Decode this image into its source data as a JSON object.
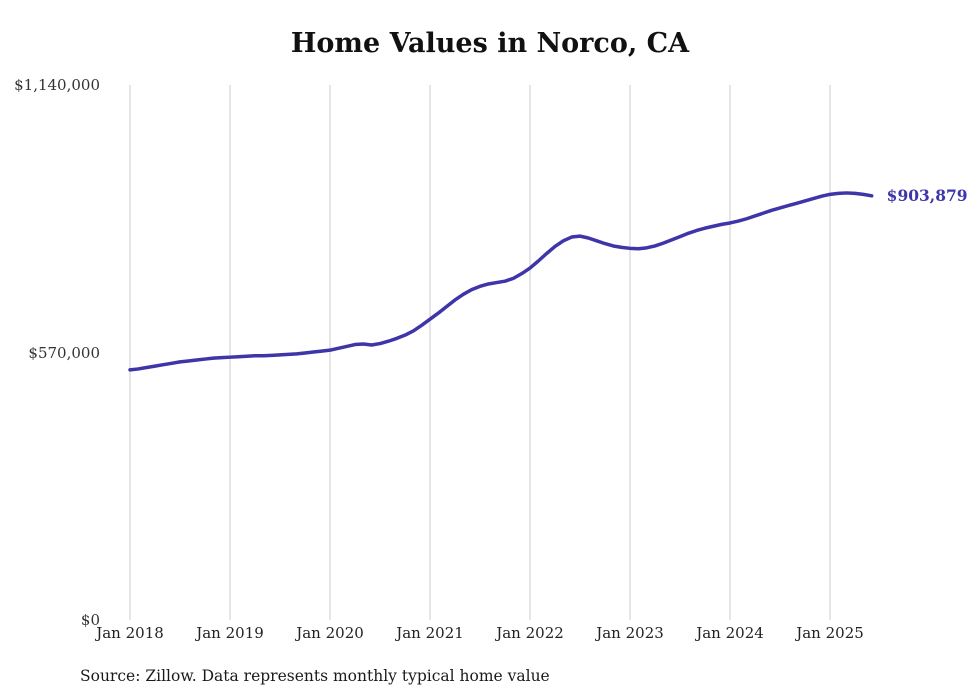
{
  "title": "Home Values in Norco, CA",
  "source_note": "Source: Zillow. Data represents monthly typical home value",
  "end_label": "$903,879",
  "colors": {
    "line": "#3d35a8",
    "grid": "#cccccc",
    "text": "#222222"
  },
  "chart_data": {
    "type": "line",
    "title": "Home Values in Norco, CA",
    "series_name": "Typical home value",
    "frequency": "monthly",
    "start_month": "2018-01",
    "end_month": "2025-06",
    "x_tick_labels": [
      "Jan 2018",
      "Jan 2019",
      "Jan 2020",
      "Jan 2021",
      "Jan 2022",
      "Jan 2023",
      "Jan 2024",
      "Jan 2025"
    ],
    "y_ticks": [
      {
        "label": "$0",
        "value": 0
      },
      {
        "label": "$570,000",
        "value": 570000
      },
      {
        "label": "$1,140,000",
        "value": 1140000
      }
    ],
    "ylim": [
      0,
      1140000
    ],
    "grid": "vertical-only",
    "legend": "none",
    "end_value": 903879,
    "end_value_label": "$903,879",
    "source": "Zillow",
    "values": [
      533000,
      535000,
      538000,
      541000,
      544000,
      547000,
      550000,
      552000,
      554000,
      556000,
      558000,
      559000,
      560000,
      561000,
      562000,
      563000,
      563000,
      564000,
      565000,
      566000,
      567000,
      569000,
      571000,
      573000,
      575000,
      579000,
      583000,
      587000,
      588000,
      586000,
      589000,
      594000,
      600000,
      607000,
      616000,
      628000,
      641000,
      654000,
      668000,
      682000,
      694000,
      704000,
      711000,
      716000,
      719000,
      722000,
      728000,
      738000,
      750000,
      765000,
      781000,
      796000,
      808000,
      816000,
      818000,
      814000,
      808000,
      802000,
      797000,
      794000,
      792000,
      791000,
      793000,
      797000,
      803000,
      810000,
      817000,
      824000,
      830000,
      835000,
      839000,
      843000,
      846000,
      850000,
      855000,
      861000,
      867000,
      873000,
      878000,
      883000,
      888000,
      893000,
      898000,
      903000,
      907000,
      909000,
      910000,
      909000,
      907000,
      903879
    ]
  }
}
